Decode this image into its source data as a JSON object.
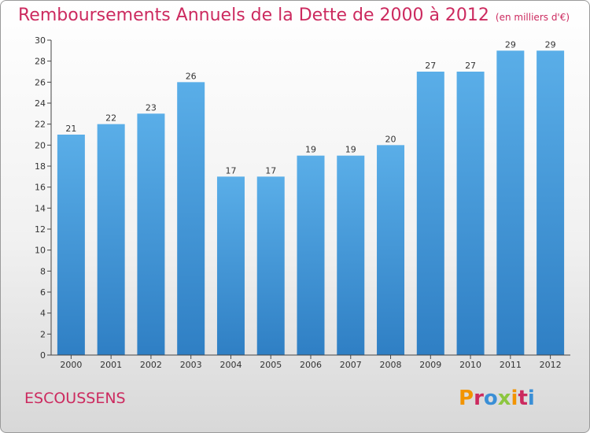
{
  "header": {
    "title": "Remboursements Annuels de la Dette de 2000 à 2012",
    "subtitle": "(en milliers d'€)"
  },
  "footer": {
    "commune": "ESCOUSSENS",
    "logo": "Proxiti",
    "logo_colors": [
      "#f29400",
      "#cc2a5f",
      "#3a8fd6",
      "#8cc63f",
      "#f29400",
      "#cc2a5f",
      "#3a8fd6"
    ]
  },
  "chart_data": {
    "type": "bar",
    "title": "Remboursements Annuels de la Dette de 2000 à 2012",
    "subtitle": "(en milliers d'€)",
    "categories": [
      "2000",
      "2001",
      "2002",
      "2003",
      "2004",
      "2005",
      "2006",
      "2007",
      "2008",
      "2009",
      "2010",
      "2011",
      "2012"
    ],
    "values": [
      21,
      22,
      23,
      26,
      17,
      17,
      19,
      19,
      20,
      27,
      27,
      29,
      29
    ],
    "ylim": [
      0,
      30
    ],
    "yticks": [
      0,
      2,
      4,
      6,
      8,
      10,
      12,
      14,
      16,
      18,
      20,
      22,
      24,
      26,
      28,
      30
    ],
    "grid": false,
    "bar_color_top": "#5aaee8",
    "bar_color_bottom": "#2f7fc4"
  }
}
